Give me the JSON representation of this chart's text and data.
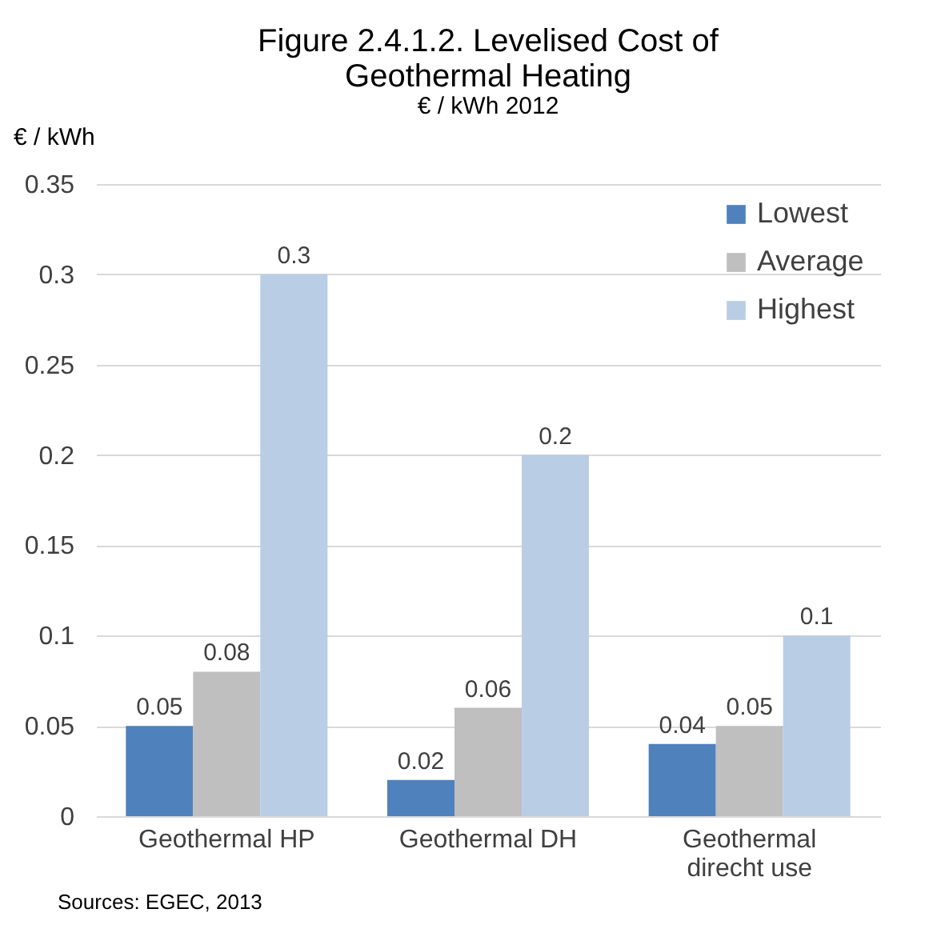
{
  "chart_data": {
    "type": "bar",
    "title": "Figure 2.4.1.2. Levelised Cost of Geothermal Heating",
    "subtitle": "€ / kWh 2012",
    "ylabel": "€  / kWh",
    "categories": [
      "Geothermal HP",
      "Geothermal DH",
      "Geothermal direcht use"
    ],
    "series": [
      {
        "name": "Lowest",
        "color": "#4f81bd",
        "values": [
          0.05,
          0.02,
          0.04
        ]
      },
      {
        "name": "Average",
        "color": "#bfbfbf",
        "values": [
          0.08,
          0.06,
          0.05
        ]
      },
      {
        "name": "Highest",
        "color": "#b9cde5",
        "values": [
          0.3,
          0.2,
          0.1
        ]
      }
    ],
    "ylim": [
      0,
      0.35
    ],
    "yticks": [
      0,
      0.05,
      0.1,
      0.15,
      0.2,
      0.25,
      0.3,
      0.35
    ],
    "grid": "y",
    "legend": "top right",
    "data_labels": true,
    "annotations": [
      "Sources: EGEC, 2013"
    ]
  }
}
